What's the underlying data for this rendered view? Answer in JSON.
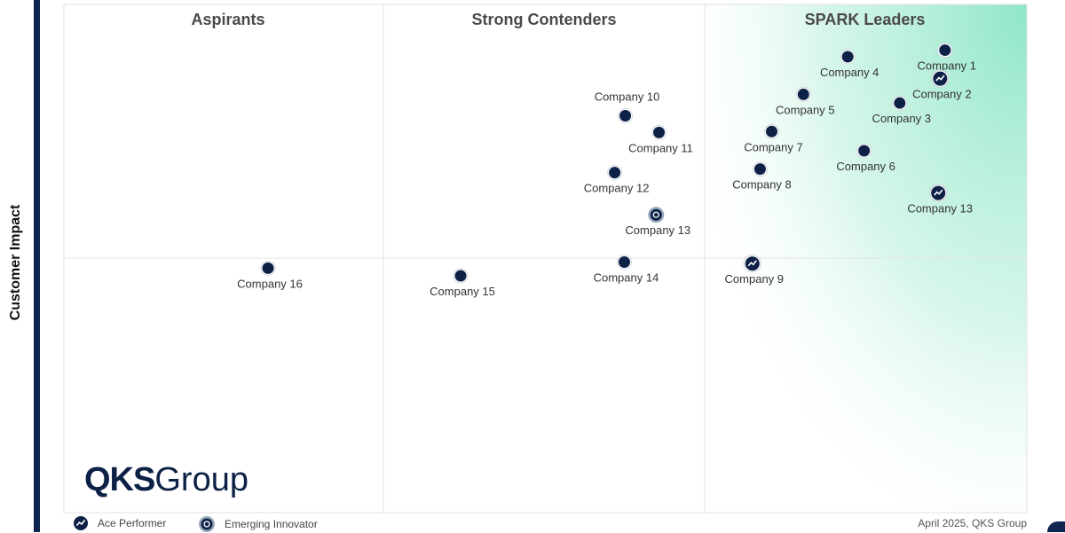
{
  "chart_data": {
    "type": "scatter",
    "title": "",
    "xlabel": "",
    "ylabel": "Customer Impact",
    "quadrants": [
      {
        "label": "Aspirants"
      },
      {
        "label": "Strong Contenders"
      },
      {
        "label": "SPARK Leaders"
      }
    ],
    "points": [
      {
        "name": "Company 1",
        "x": 91.5,
        "y": 91.0,
        "marker": "standard"
      },
      {
        "name": "Company 2",
        "x": 91.0,
        "y": 85.4,
        "marker": "ace"
      },
      {
        "name": "Company 3",
        "x": 86.8,
        "y": 80.6,
        "marker": "standard"
      },
      {
        "name": "Company 4",
        "x": 81.4,
        "y": 89.7,
        "marker": "standard"
      },
      {
        "name": "Company 5",
        "x": 76.8,
        "y": 82.3,
        "marker": "standard"
      },
      {
        "name": "Company 6",
        "x": 83.1,
        "y": 71.2,
        "marker": "standard"
      },
      {
        "name": "Company 7",
        "x": 73.5,
        "y": 75.0,
        "marker": "standard"
      },
      {
        "name": "Company 8",
        "x": 72.3,
        "y": 67.6,
        "marker": "standard"
      },
      {
        "name": "Company 9",
        "x": 71.5,
        "y": 49.0,
        "marker": "ace"
      },
      {
        "name": "Company 10",
        "x": 58.3,
        "y": 78.1,
        "marker": "standard"
      },
      {
        "name": "Company 11",
        "x": 61.8,
        "y": 74.8,
        "marker": "standard"
      },
      {
        "name": "Company 12",
        "x": 57.2,
        "y": 66.9,
        "marker": "standard"
      },
      {
        "name": "Company 13",
        "x": 61.5,
        "y": 58.6,
        "marker": "emerging"
      },
      {
        "name": "Company 13",
        "x": 90.8,
        "y": 62.9,
        "marker": "ace"
      },
      {
        "name": "Company 14",
        "x": 58.2,
        "y": 49.3,
        "marker": "standard"
      },
      {
        "name": "Company 15",
        "x": 41.2,
        "y": 46.6,
        "marker": "standard"
      },
      {
        "name": "Company 16",
        "x": 21.2,
        "y": 48.1,
        "marker": "standard"
      }
    ],
    "legend": [
      {
        "label": "Ace Performer",
        "marker": "ace"
      },
      {
        "label": "Emerging Innovator",
        "marker": "emerging"
      }
    ],
    "legend_position": "bottom-left",
    "grid": true
  },
  "branding": {
    "logo_bold": "QKS",
    "logo_light": "Group"
  },
  "footer": {
    "date": "April 2025, QKS Group"
  },
  "colors": {
    "marker": "#0d2146",
    "leader_gradient": "#8ee6c6",
    "axis_bar": "#0f2550"
  }
}
